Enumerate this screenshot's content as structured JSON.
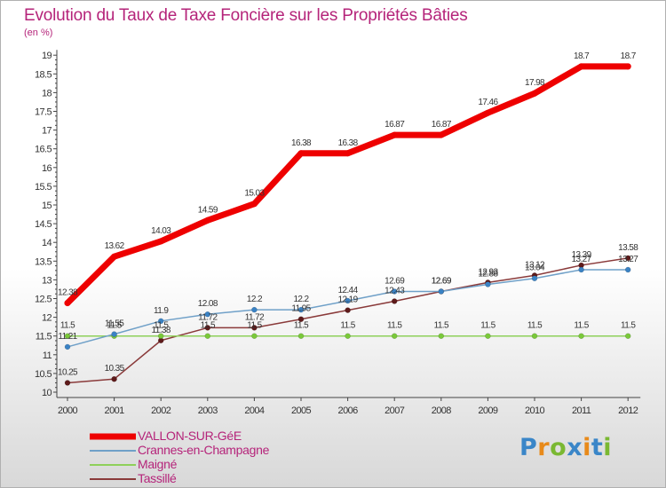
{
  "title": "Evolution du Taux de Taxe Foncière sur les Propriétés Bâties",
  "unit_label": "(en %)",
  "logo": {
    "text": "Proxiti",
    "letters": [
      "P",
      "r",
      "o",
      "x",
      "i",
      "t",
      "i"
    ],
    "colors": [
      "#3a86c8",
      "#e88a1a",
      "#7ab832",
      "#3a86c8",
      "#e88a1a",
      "#3a86c8",
      "#7ab832"
    ]
  },
  "chart_data": {
    "type": "line",
    "title": "Evolution du Taux de Taxe Foncière sur les Propriétés Bâties",
    "ylabel": "(en %)",
    "xlabel": "",
    "x": [
      "2000",
      "2001",
      "2002",
      "2003",
      "2004",
      "2005",
      "2006",
      "2007",
      "2008",
      "2009",
      "2010",
      "2011",
      "2012"
    ],
    "ylim": [
      10,
      19
    ],
    "yticks": [
      "10",
      "10.5",
      "11",
      "11.5",
      "12",
      "12.5",
      "13",
      "13.5",
      "14",
      "14.5",
      "15",
      "15.5",
      "16",
      "16.5",
      "17",
      "17.5",
      "18",
      "18.5",
      "19"
    ],
    "grid": false,
    "legend_position": "bottom-left",
    "series": [
      {
        "name": "VALLON-SUR-GéE",
        "color": "#ee0000",
        "emphasis": "thick",
        "values": [
          12.38,
          13.62,
          14.03,
          14.59,
          15.03,
          16.38,
          16.38,
          16.87,
          16.87,
          17.46,
          17.98,
          18.7,
          18.7
        ],
        "labels": [
          "12.38",
          "13.62",
          "14.03",
          "14.59",
          "15.03",
          "16.38",
          "16.38",
          "16.87",
          "16.87",
          "17.46",
          "17.98",
          "18.7",
          "18.7"
        ]
      },
      {
        "name": "Crannes-en-Champagne",
        "color": "#6fa0c8",
        "marker": "#3a82c4",
        "emphasis": "thin",
        "values": [
          11.21,
          11.55,
          11.9,
          12.08,
          12.2,
          12.2,
          12.44,
          12.69,
          12.69,
          12.88,
          13.04,
          13.27,
          13.27
        ],
        "labels": [
          "11.21",
          "11.55",
          "11.9",
          "12.08",
          "12.2",
          "12.2",
          "12.44",
          "12.69",
          "12.69",
          "12.88",
          "13.04",
          "13.27",
          "13.27"
        ]
      },
      {
        "name": "Maigné",
        "color": "#8ed05a",
        "marker": "#7ac83a",
        "emphasis": "thin",
        "values": [
          11.5,
          11.5,
          11.5,
          11.5,
          11.5,
          11.5,
          11.5,
          11.5,
          11.5,
          11.5,
          11.5,
          11.5,
          11.5
        ],
        "labels": [
          "11.5",
          "11.5",
          "11.5",
          "11.5",
          "11.5",
          "11.5",
          "11.5",
          "11.5",
          "11.5",
          "11.5",
          "11.5",
          "11.5",
          "11.5"
        ]
      },
      {
        "name": "Tassillé",
        "color": "#8a3a3a",
        "marker": "#5e1a1a",
        "emphasis": "thin",
        "values": [
          10.25,
          10.35,
          11.38,
          11.72,
          11.72,
          11.95,
          12.19,
          12.43,
          12.69,
          12.93,
          13.12,
          13.39,
          13.58
        ],
        "labels": [
          "10.25",
          "10.35",
          "11.38",
          "11.72",
          "11.72",
          "11.95",
          "12.19",
          "12.43",
          "12.69",
          "12.93",
          "13.12",
          "13.39",
          "13.58"
        ]
      }
    ]
  }
}
